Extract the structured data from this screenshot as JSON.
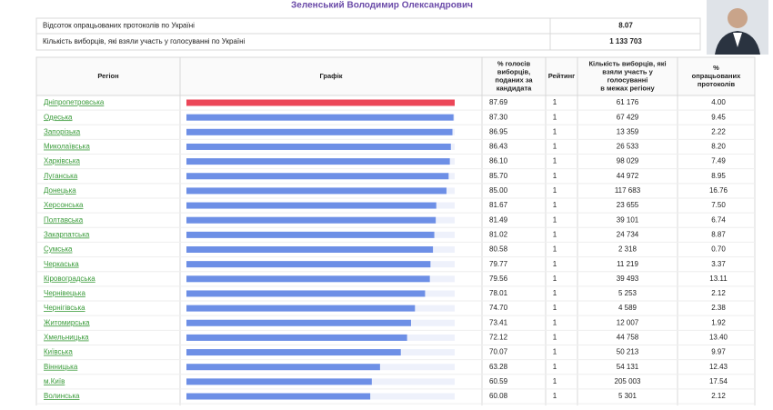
{
  "header": {
    "title": "Зеленський Володимир Олександрович"
  },
  "summary": [
    {
      "label": "Відсоток опрацьованих протоколів по Україні",
      "value": "8.07"
    },
    {
      "label": "Кількість виборців, які взяли участь у голосуванні по Україні",
      "value": "1 133 703"
    }
  ],
  "table": {
    "columns": [
      "Регіон",
      "Графік",
      "% голосів виборців, поданих за кандидата",
      "Рейтинг",
      "Кількість виборців, які взяли участь у голосуванні в межах регіону",
      "% опрацьованих протоколів"
    ],
    "rows": [
      {
        "region": "Дніпропетровська",
        "pct": "87.69",
        "rank": "1",
        "voters": "61 176",
        "processed": "4.00"
      },
      {
        "region": "Одеська",
        "pct": "87.30",
        "rank": "1",
        "voters": "67 429",
        "processed": "9.45"
      },
      {
        "region": "Запорізька",
        "pct": "86.95",
        "rank": "1",
        "voters": "13 359",
        "processed": "2.22"
      },
      {
        "region": "Миколаївська",
        "pct": "86.43",
        "rank": "1",
        "voters": "26 533",
        "processed": "8.20"
      },
      {
        "region": "Харківська",
        "pct": "86.10",
        "rank": "1",
        "voters": "98 029",
        "processed": "7.49"
      },
      {
        "region": "Луганська",
        "pct": "85.70",
        "rank": "1",
        "voters": "44 972",
        "processed": "8.95"
      },
      {
        "region": "Донецька",
        "pct": "85.00",
        "rank": "1",
        "voters": "117 683",
        "processed": "16.76"
      },
      {
        "region": "Херсонська",
        "pct": "81.67",
        "rank": "1",
        "voters": "23 655",
        "processed": "7.50"
      },
      {
        "region": "Полтавська",
        "pct": "81.49",
        "rank": "1",
        "voters": "39 101",
        "processed": "6.74"
      },
      {
        "region": "Закарпатська",
        "pct": "81.02",
        "rank": "1",
        "voters": "24 734",
        "processed": "8.87"
      },
      {
        "region": "Сумська",
        "pct": "80.58",
        "rank": "1",
        "voters": "2 318",
        "processed": "0.70"
      },
      {
        "region": "Черкаська",
        "pct": "79.77",
        "rank": "1",
        "voters": "11 219",
        "processed": "3.37"
      },
      {
        "region": "Кіровоградська",
        "pct": "79.56",
        "rank": "1",
        "voters": "39 493",
        "processed": "13.11"
      },
      {
        "region": "Чернівецька",
        "pct": "78.01",
        "rank": "1",
        "voters": "5 253",
        "processed": "2.12"
      },
      {
        "region": "Чернігівська",
        "pct": "74.70",
        "rank": "1",
        "voters": "4 589",
        "processed": "2.38"
      },
      {
        "region": "Житомирська",
        "pct": "73.41",
        "rank": "1",
        "voters": "12 007",
        "processed": "1.92"
      },
      {
        "region": "Хмельницька",
        "pct": "72.12",
        "rank": "1",
        "voters": "44 758",
        "processed": "13.40"
      },
      {
        "region": "Київська",
        "pct": "70.07",
        "rank": "1",
        "voters": "50 213",
        "processed": "9.97"
      },
      {
        "region": "Вінницька",
        "pct": "63.28",
        "rank": "1",
        "voters": "54 131",
        "processed": "12.43"
      },
      {
        "region": "м.Київ",
        "pct": "60.59",
        "rank": "1",
        "voters": "205 003",
        "processed": "17.54"
      },
      {
        "region": "Волинська",
        "pct": "60.08",
        "rank": "1",
        "voters": "5 301",
        "processed": "2.12"
      }
    ]
  }
}
